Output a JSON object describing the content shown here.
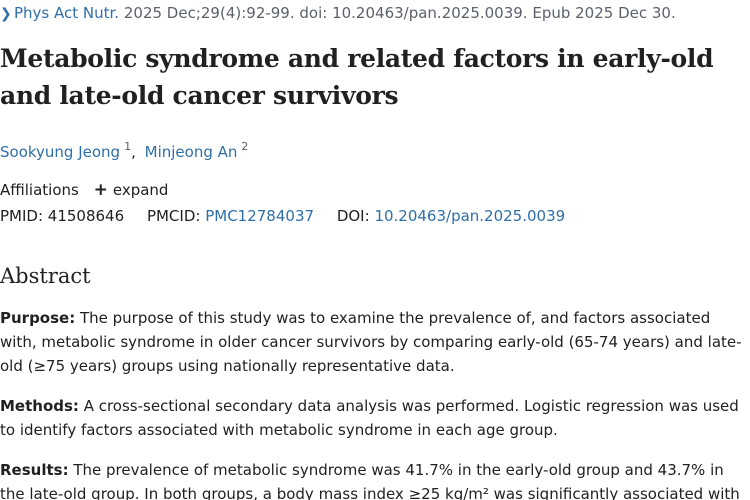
{
  "citation": {
    "chevron_icon": "chevron-right-icon",
    "journal": "Phys Act Nutr.",
    "details": "2025 Dec;29(4):92-99. doi: 10.20463/pan.2025.0039. Epub 2025 Dec 30."
  },
  "title": "Metabolic syndrome and related factors in early-old and late-old cancer survivors",
  "authors": [
    {
      "name": "Sookyung Jeong",
      "affil": "1"
    },
    {
      "name": "Minjeong An",
      "affil": "2"
    }
  ],
  "author_separator": ",",
  "affiliations": {
    "label": "Affiliations",
    "expand_icon": "plus-icon",
    "expand_label": "expand"
  },
  "ids": {
    "pmid_label": "PMID:",
    "pmid": "41508646",
    "pmcid_label": "PMCID:",
    "pmcid": "PMC12784037",
    "doi_label": "DOI:",
    "doi": "10.20463/pan.2025.0039"
  },
  "abstract": {
    "heading": "Abstract",
    "purpose_label": "Purpose:",
    "purpose_text": " The purpose of this study was to examine the prevalence of, and factors associated with, metabolic syndrome in older cancer survivors by comparing early-old (65-74 years) and late-old (≥75 years) groups using nationally representative data.",
    "methods_label": "Methods:",
    "methods_text": " A cross-sectional secondary data analysis was performed. Logistic regression was used to identify factors associated with metabolic syndrome in each age group.",
    "results_label": "Results:",
    "results_text": " The prevalence of metabolic syndrome was 41.7% in the early-old group and 43.7% in the late-old group. In both groups, a body mass index ≥25 kg/m² was significantly associated with"
  }
}
